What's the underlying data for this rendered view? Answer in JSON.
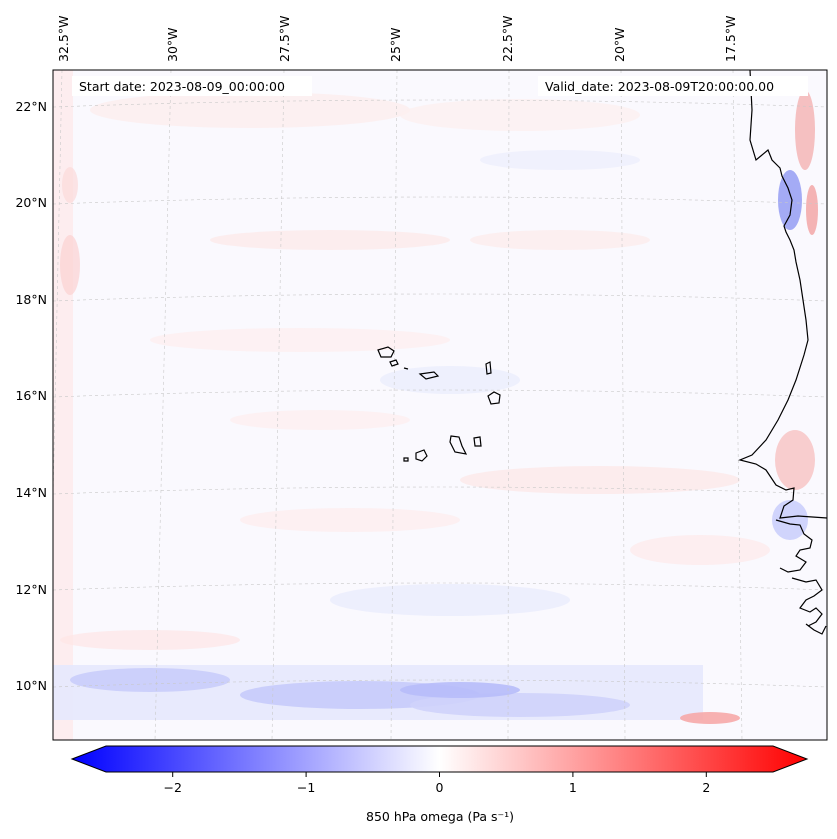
{
  "annotations": {
    "start_date": "Start date: 2023-08-09_00:00:00",
    "valid_date": "Valid_date: 2023-08-09T20:00:00.00"
  },
  "lon_labels": [
    "32.5°W",
    "30°W",
    "27.5°W",
    "25°W",
    "22.5°W",
    "20°W",
    "17.5°W"
  ],
  "lat_labels": [
    "22°N",
    "20°N",
    "18°N",
    "16°N",
    "14°N",
    "12°N",
    "10°N"
  ],
  "colorbar": {
    "label": "850 hPa omega (Pa s⁻¹)",
    "ticks": [
      "−2",
      "−1",
      "0",
      "1",
      "2"
    ],
    "tick_values": [
      -2,
      -1,
      0,
      1,
      2
    ],
    "range": [
      -2.5,
      2.5
    ],
    "colors": {
      "negative": "#0000ff",
      "zero": "#ffffff",
      "positive": "#ff0000"
    }
  },
  "map": {
    "field": "850 hPa omega",
    "colormap": "bwr",
    "coastline_color": "#000000",
    "gridline_style": "dashed light grey"
  }
}
